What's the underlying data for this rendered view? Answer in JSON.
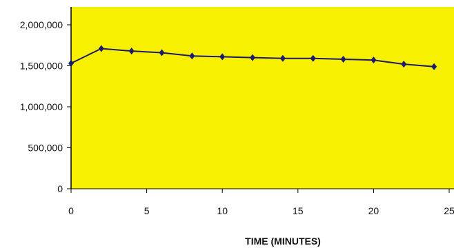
{
  "chart_data": {
    "type": "line",
    "title": "",
    "xlabel": "TIME (MINUTES)",
    "ylabel": "",
    "xlim": [
      0,
      25
    ],
    "ylim": [
      0,
      2000000
    ],
    "x_ticks": [
      0,
      5,
      10,
      15,
      20,
      25
    ],
    "x_tick_labels": [
      "0",
      "5",
      "10",
      "15",
      "20",
      "25"
    ],
    "y_ticks": [
      0,
      500000,
      1000000,
      1500000,
      2000000
    ],
    "y_tick_labels": [
      "0",
      "500,000",
      "1,000,000",
      "1,500,000",
      "2,000,000"
    ],
    "grid": false,
    "legend": "none",
    "colors": {
      "plot_background": "#F7F000",
      "series": "#1A1A6E",
      "axis": "#000000"
    },
    "series": [
      {
        "x": [
          0,
          2,
          4,
          6,
          8,
          10,
          12,
          14,
          16,
          18,
          20,
          22,
          24
        ],
        "values": [
          1530000,
          1710000,
          1680000,
          1660000,
          1620000,
          1610000,
          1600000,
          1590000,
          1590000,
          1580000,
          1570000,
          1520000,
          1490000
        ]
      }
    ]
  }
}
